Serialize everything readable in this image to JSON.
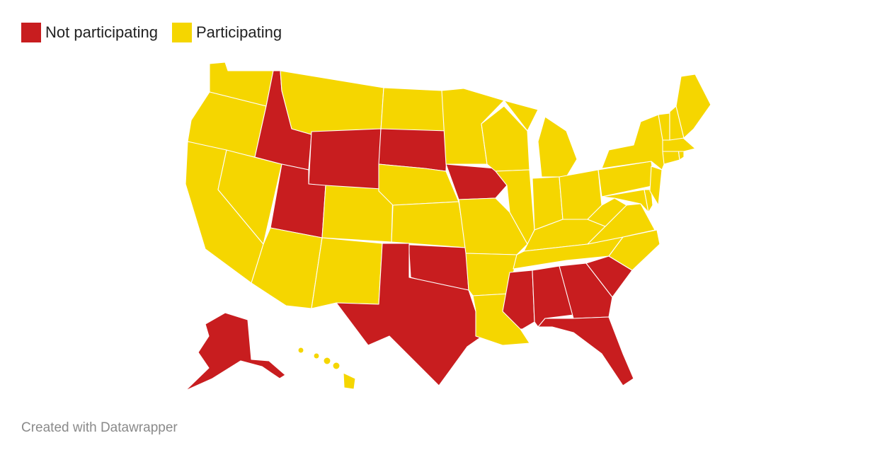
{
  "legend": [
    {
      "label": "Not participating",
      "color": "#c81d1f"
    },
    {
      "label": "Participating",
      "color": "#f5d600"
    }
  ],
  "colors": {
    "not_participating": "#c81d1f",
    "participating": "#f5d600"
  },
  "map": {
    "states": [
      {
        "id": "WA",
        "status": "participating"
      },
      {
        "id": "OR",
        "status": "participating"
      },
      {
        "id": "CA",
        "status": "participating"
      },
      {
        "id": "ID",
        "status": "not_participating"
      },
      {
        "id": "NV",
        "status": "participating"
      },
      {
        "id": "MT",
        "status": "participating"
      },
      {
        "id": "WY",
        "status": "not_participating"
      },
      {
        "id": "UT",
        "status": "not_participating"
      },
      {
        "id": "AZ",
        "status": "participating"
      },
      {
        "id": "CO",
        "status": "participating"
      },
      {
        "id": "NM",
        "status": "participating"
      },
      {
        "id": "ND",
        "status": "participating"
      },
      {
        "id": "SD",
        "status": "not_participating"
      },
      {
        "id": "NE",
        "status": "participating"
      },
      {
        "id": "KS",
        "status": "participating"
      },
      {
        "id": "OK",
        "status": "not_participating"
      },
      {
        "id": "TX",
        "status": "not_participating"
      },
      {
        "id": "MN",
        "status": "participating"
      },
      {
        "id": "IA",
        "status": "not_participating"
      },
      {
        "id": "MO",
        "status": "participating"
      },
      {
        "id": "AR",
        "status": "participating"
      },
      {
        "id": "LA",
        "status": "participating"
      },
      {
        "id": "WI",
        "status": "participating"
      },
      {
        "id": "IL",
        "status": "participating"
      },
      {
        "id": "MI",
        "status": "participating"
      },
      {
        "id": "IN",
        "status": "participating"
      },
      {
        "id": "OH",
        "status": "participating"
      },
      {
        "id": "KY",
        "status": "participating"
      },
      {
        "id": "TN",
        "status": "participating"
      },
      {
        "id": "MS",
        "status": "not_participating"
      },
      {
        "id": "AL",
        "status": "not_participating"
      },
      {
        "id": "GA",
        "status": "not_participating"
      },
      {
        "id": "FL",
        "status": "not_participating"
      },
      {
        "id": "SC",
        "status": "not_participating"
      },
      {
        "id": "NC",
        "status": "participating"
      },
      {
        "id": "VA",
        "status": "participating"
      },
      {
        "id": "WV",
        "status": "participating"
      },
      {
        "id": "PA",
        "status": "participating"
      },
      {
        "id": "NY",
        "status": "participating"
      },
      {
        "id": "NJ",
        "status": "participating"
      },
      {
        "id": "DE",
        "status": "participating"
      },
      {
        "id": "MD",
        "status": "participating"
      },
      {
        "id": "CT",
        "status": "participating"
      },
      {
        "id": "RI",
        "status": "participating"
      },
      {
        "id": "MA",
        "status": "participating"
      },
      {
        "id": "VT",
        "status": "participating"
      },
      {
        "id": "NH",
        "status": "participating"
      },
      {
        "id": "ME",
        "status": "participating"
      },
      {
        "id": "AK",
        "status": "not_participating"
      },
      {
        "id": "HI",
        "status": "participating"
      }
    ]
  },
  "footer": {
    "credit": "Created with Datawrapper"
  }
}
